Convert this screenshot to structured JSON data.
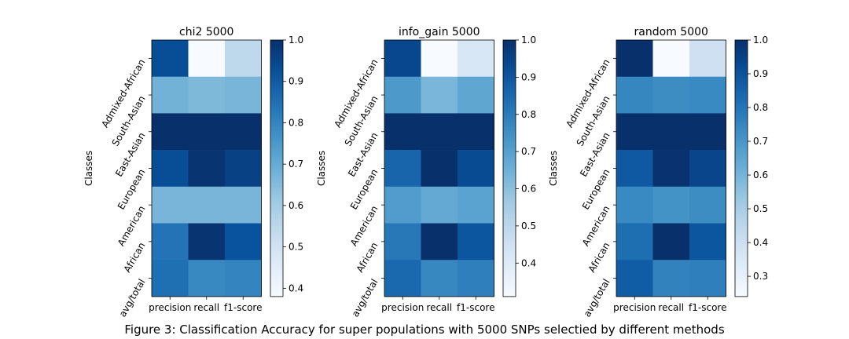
{
  "caption": "Figure 3: Classification Accuracy for super populations with 5000 SNPs selectied by different methods",
  "chart_data": [
    {
      "type": "heatmap",
      "title": "chi2 5000",
      "ylabel": "Classes",
      "xlabel": "",
      "x_categories": [
        "precision",
        "recall",
        "f1-score"
      ],
      "y_categories": [
        "Admixed-African",
        "South-Asian",
        "East-Asian",
        "European",
        "American",
        "African",
        "avg/total"
      ],
      "values": [
        [
          0.93,
          0.38,
          0.55
        ],
        [
          0.68,
          0.66,
          0.67
        ],
        [
          1.0,
          1.0,
          1.0
        ],
        [
          0.93,
          0.99,
          0.96
        ],
        [
          0.67,
          0.67,
          0.67
        ],
        [
          0.84,
          0.99,
          0.92
        ],
        [
          0.85,
          0.79,
          0.8
        ]
      ],
      "colorbar": {
        "min": 0.38,
        "max": 1.0,
        "ticks": [
          "0.4",
          "0.5",
          "0.6",
          "0.7",
          "0.8",
          "0.9",
          "1.0"
        ],
        "tick_values": [
          0.4,
          0.5,
          0.6,
          0.7,
          0.8,
          0.9,
          1.0
        ]
      }
    },
    {
      "type": "heatmap",
      "title": "info_gain 5000",
      "ylabel": "Classes",
      "xlabel": "",
      "x_categories": [
        "precision",
        "recall",
        "f1-score"
      ],
      "y_categories": [
        "Admixed-African",
        "South-Asian",
        "East-Asian",
        "European",
        "American",
        "African",
        "avg/total"
      ],
      "values": [
        [
          0.94,
          0.31,
          0.42
        ],
        [
          0.72,
          0.63,
          0.68
        ],
        [
          1.0,
          1.0,
          1.0
        ],
        [
          0.86,
          1.0,
          0.93
        ],
        [
          0.71,
          0.67,
          0.69
        ],
        [
          0.81,
          1.0,
          0.9
        ],
        [
          0.85,
          0.77,
          0.79
        ]
      ],
      "colorbar": {
        "min": 0.31,
        "max": 1.0,
        "ticks": [
          "0.4",
          "0.5",
          "0.6",
          "0.7",
          "0.8",
          "0.9",
          "1.0"
        ],
        "tick_values": [
          0.4,
          0.5,
          0.6,
          0.7,
          0.8,
          0.9,
          1.0
        ]
      }
    },
    {
      "type": "heatmap",
      "title": "random 5000",
      "ylabel": "Classes",
      "xlabel": "",
      "x_categories": [
        "precision",
        "recall",
        "f1-score"
      ],
      "y_categories": [
        "Admixed-African",
        "South-Asian",
        "East-Asian",
        "European",
        "American",
        "African",
        "avg/total"
      ],
      "values": [
        [
          1.0,
          0.24,
          0.4
        ],
        [
          0.75,
          0.73,
          0.74
        ],
        [
          1.0,
          1.0,
          1.0
        ],
        [
          0.88,
          0.99,
          0.94
        ],
        [
          0.74,
          0.71,
          0.73
        ],
        [
          0.82,
          1.0,
          0.89
        ],
        [
          0.87,
          0.76,
          0.77
        ]
      ],
      "colorbar": {
        "min": 0.24,
        "max": 1.0,
        "ticks": [
          "0.3",
          "0.4",
          "0.5",
          "0.6",
          "0.7",
          "0.8",
          "0.9",
          "1.0"
        ],
        "tick_values": [
          0.3,
          0.4,
          0.5,
          0.6,
          0.7,
          0.8,
          0.9,
          1.0
        ]
      }
    }
  ]
}
